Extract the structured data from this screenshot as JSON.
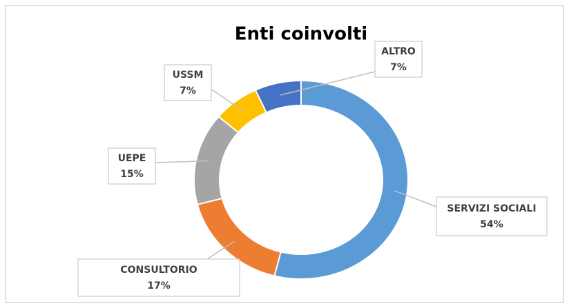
{
  "chart_data": {
    "type": "donut",
    "title": "Enti coinvolti",
    "categories": [
      "SERVIZI SOCIALI",
      "CONSULTORIO",
      "UEPE",
      "USSM",
      "ALTRO"
    ],
    "values": [
      54,
      17,
      15,
      7,
      7
    ],
    "value_labels": [
      "54%",
      "17%",
      "15%",
      "7%",
      "7%"
    ],
    "colors": [
      "#5b9bd5",
      "#ed7d31",
      "#a5a5a5",
      "#ffc000",
      "#4472c4"
    ]
  }
}
